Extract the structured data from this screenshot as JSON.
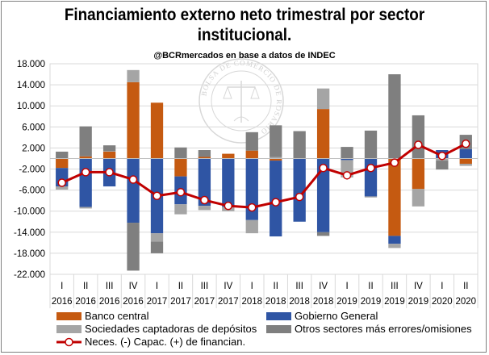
{
  "header": {
    "title_line1": "Financiamiento externo neto trimestral por sector",
    "title_line2": "institucional.",
    "subtitle": "@BCRmercados en base a datos de INDEC",
    "watermark_text": "BOLSA DE COMERCIO DE ROSARIO"
  },
  "chart_data": {
    "type": "bar",
    "stacked": true,
    "title": "Financiamiento externo neto trimestral por sector institucional.",
    "subtitle": "@BCRmercados en base a datos de INDEC",
    "categories": [
      [
        "I",
        "2016"
      ],
      [
        "II",
        "2016"
      ],
      [
        "III",
        "2016"
      ],
      [
        "IV",
        "2016"
      ],
      [
        "I",
        "2017"
      ],
      [
        "II",
        "2017"
      ],
      [
        "III",
        "2017"
      ],
      [
        "IV",
        "2017"
      ],
      [
        "I",
        "2018"
      ],
      [
        "II",
        "2018"
      ],
      [
        "III",
        "2018"
      ],
      [
        "IV",
        "2018"
      ],
      [
        "I",
        "2019"
      ],
      [
        "II",
        "2019"
      ],
      [
        "III",
        "2019"
      ],
      [
        "IV",
        "2019"
      ],
      [
        "I",
        "2020"
      ],
      [
        "II",
        "2020"
      ]
    ],
    "ylim": [
      -22000,
      18000
    ],
    "yticks": [
      18000,
      14000,
      10000,
      6000,
      2000,
      -2000,
      -6000,
      -10000,
      -14000,
      -18000,
      -22000
    ],
    "ytick_labels": [
      "18.000",
      "14.000",
      "10.000",
      "6.000",
      "2.000",
      "-2.000",
      "-6.000",
      "-10.000",
      "-14.000",
      "-18.000",
      "-22.000"
    ],
    "grid": true,
    "legend_position": "bottom",
    "series": [
      {
        "name": "Banco central",
        "color": "#c55a11",
        "values": [
          -1800,
          400,
          1300,
          14500,
          10600,
          -3400,
          300,
          900,
          1500,
          -400,
          0,
          9400,
          0,
          0,
          -14700,
          -5800,
          0,
          -1000
        ]
      },
      {
        "name": "Gobierno General",
        "color": "#2f55a4",
        "values": [
          -3500,
          -9200,
          -5300,
          -12200,
          -14200,
          -5300,
          -9000,
          -9200,
          -11700,
          -14400,
          -12000,
          -14000,
          -300,
          -7200,
          -1500,
          0,
          1600,
          1800
        ]
      },
      {
        "name": "Sociedades captadoras de depósitos",
        "color": "#a5a5a5",
        "values": [
          -600,
          -300,
          100,
          2300,
          -1600,
          -1900,
          -800,
          -800,
          -2500,
          300,
          0,
          3900,
          -3300,
          -200,
          -800,
          -3300,
          -400,
          -400
        ]
      },
      {
        "name": "Otros sectores más errores/omisiones",
        "color": "#7f7f7f",
        "values": [
          1300,
          5700,
          1100,
          -9100,
          -2200,
          2100,
          1300,
          0,
          3500,
          6000,
          5200,
          -700,
          2200,
          5300,
          16000,
          8200,
          -1700,
          2700
        ]
      }
    ],
    "line": {
      "name": "Neces. (-) Capac. (+) de financian.",
      "color": "#c00000",
      "values": [
        -4600,
        -2600,
        -2600,
        -4000,
        -7100,
        -6400,
        -7900,
        -9000,
        -9300,
        -8300,
        -7300,
        -1800,
        -3200,
        -1800,
        -800,
        2600,
        500,
        2800
      ]
    },
    "legend": [
      {
        "label": "Banco central",
        "kind": "box",
        "color": "#c55a11"
      },
      {
        "label": "Gobierno General",
        "kind": "box",
        "color": "#2f55a4"
      },
      {
        "label": "Sociedades captadoras de depósitos",
        "kind": "box",
        "color": "#a5a5a5"
      },
      {
        "label": "Otros sectores más errores/omisiones",
        "kind": "box",
        "color": "#7f7f7f"
      },
      {
        "label": "Neces. (-) Capac. (+) de financian.",
        "kind": "line",
        "color": "#c00000"
      }
    ]
  }
}
